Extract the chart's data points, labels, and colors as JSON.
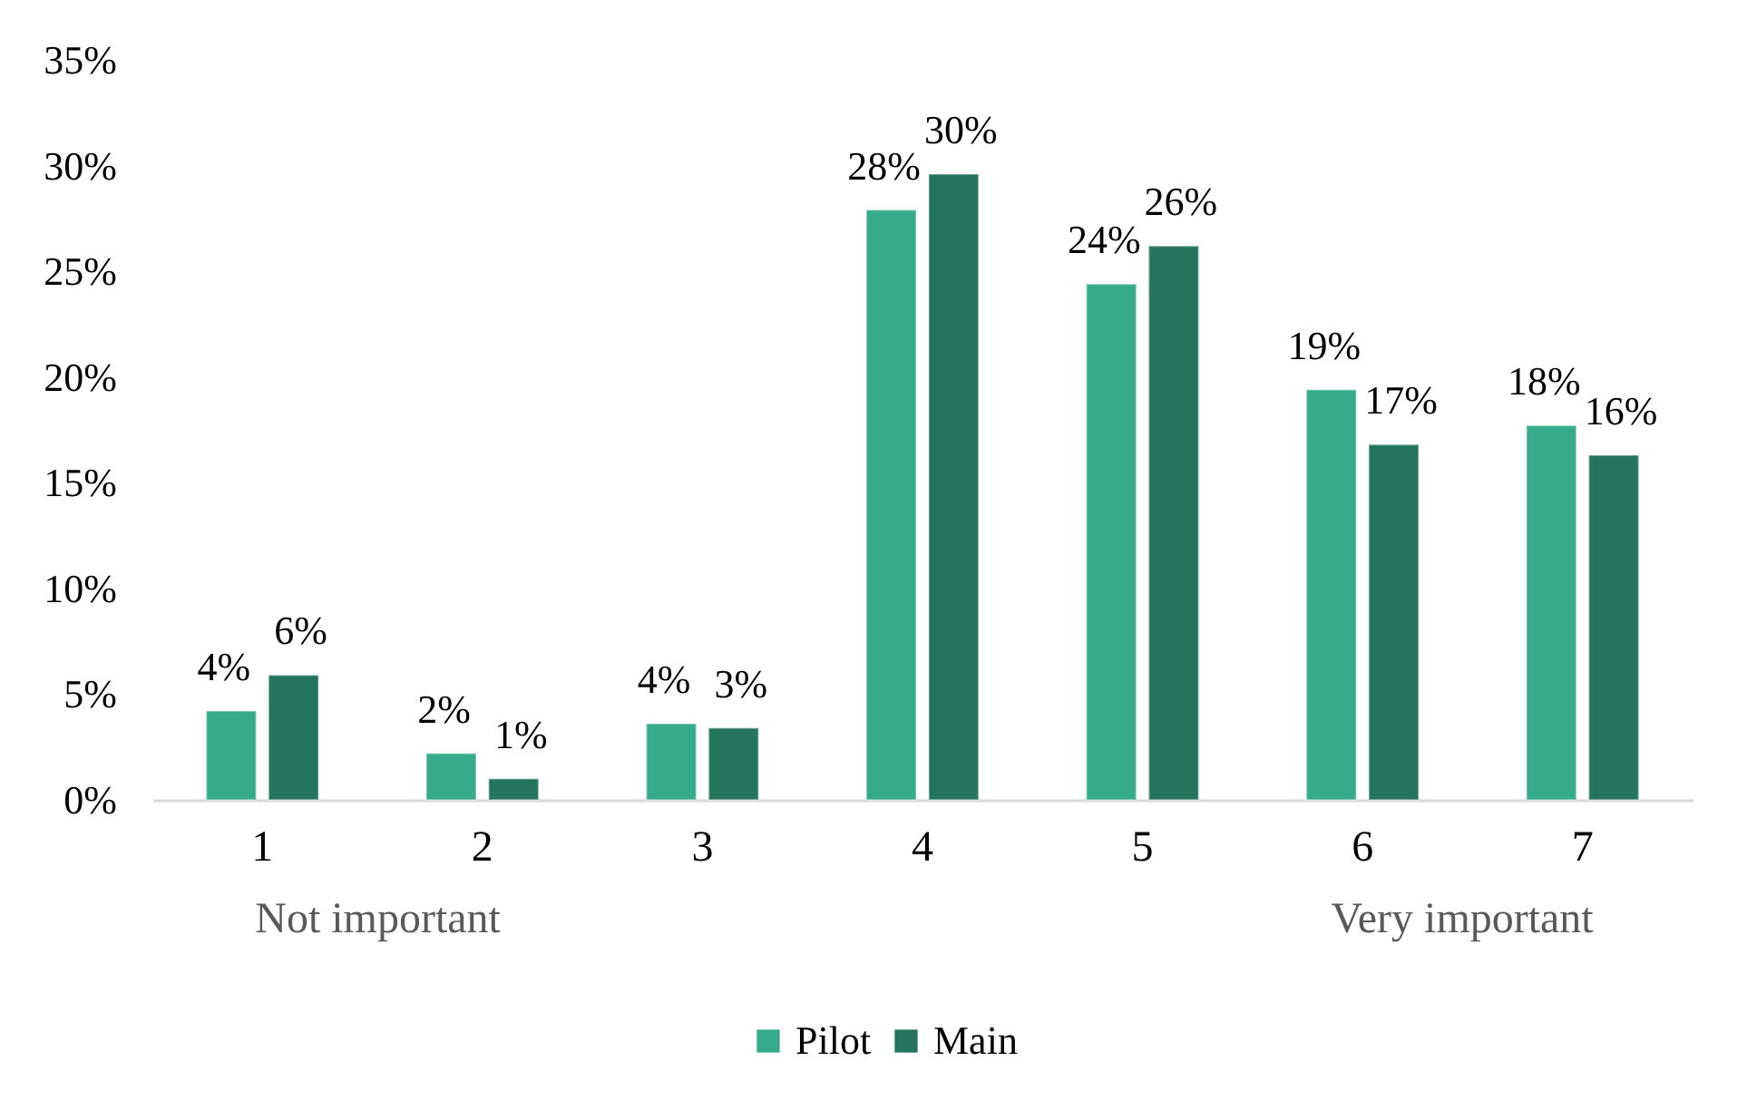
{
  "chart_data": {
    "type": "bar",
    "categories": [
      "1",
      "2",
      "3",
      "4",
      "5",
      "6",
      "7"
    ],
    "series": [
      {
        "name": "Pilot",
        "color": "#36ab8a",
        "values": [
          4.2,
          2.2,
          3.6,
          27.9,
          24.4,
          19.4,
          17.7
        ],
        "value_labels": [
          "4%",
          "2%",
          "4%",
          "28%",
          "24%",
          "19%",
          "18%"
        ]
      },
      {
        "name": "Main",
        "color": "#23755d",
        "values": [
          5.9,
          1.0,
          3.4,
          29.6,
          26.2,
          16.8,
          16.3
        ],
        "value_labels": [
          "6%",
          "1%",
          "3%",
          "30%",
          "26%",
          "17%",
          "16%"
        ]
      }
    ],
    "ylim": [
      0,
      35
    ],
    "yticks": [
      {
        "value": 0,
        "label": "0%"
      },
      {
        "value": 5,
        "label": "5%"
      },
      {
        "value": 10,
        "label": "10%"
      },
      {
        "value": 15,
        "label": "15%"
      },
      {
        "value": 20,
        "label": "20%"
      },
      {
        "value": 25,
        "label": "25%"
      },
      {
        "value": 30,
        "label": "30%"
      },
      {
        "value": 35,
        "label": "35%"
      }
    ],
    "grid": false,
    "legend": "bottom",
    "annotations": [
      "Not important",
      "Very important"
    ]
  }
}
